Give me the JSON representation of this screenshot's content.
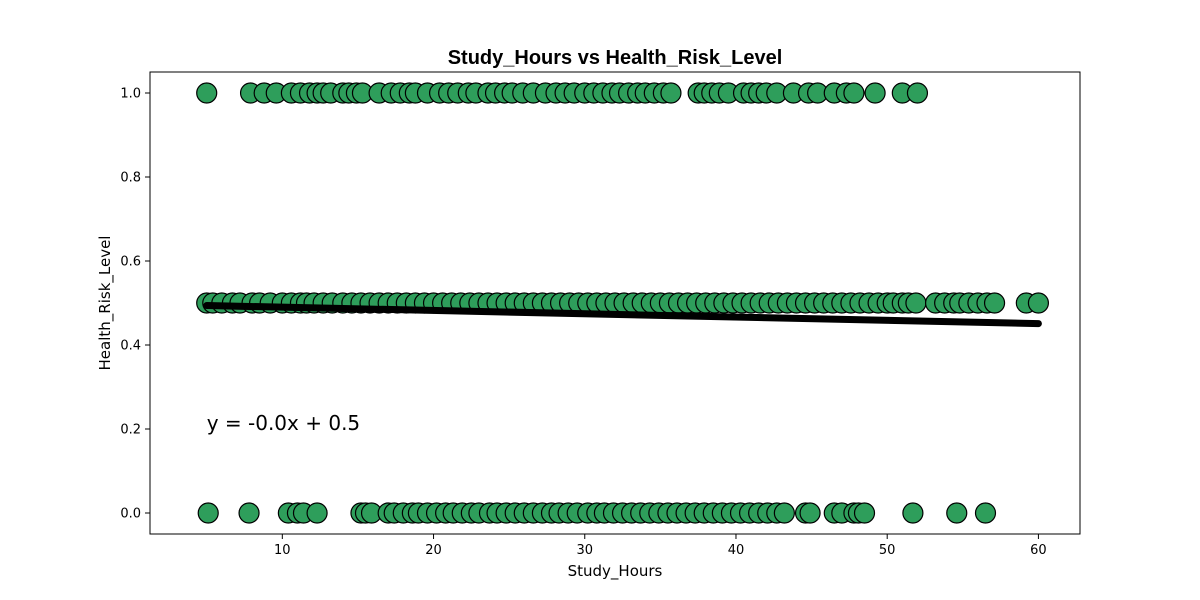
{
  "chart_data": {
    "type": "scatter",
    "title": "Study_Hours vs Health_Risk_Level",
    "xlabel": "Study_Hours",
    "ylabel": "Health_Risk_Level",
    "xlim": [
      1.25,
      62.75
    ],
    "ylim": [
      -0.05,
      1.05
    ],
    "x_ticks": [
      10,
      20,
      30,
      40,
      50,
      60
    ],
    "y_ticks": [
      0.0,
      0.2,
      0.4,
      0.6,
      0.8,
      1.0
    ],
    "x_tick_labels": [
      "10",
      "20",
      "30",
      "40",
      "50",
      "60"
    ],
    "y_tick_labels": [
      "0.0",
      "0.2",
      "0.4",
      "0.6",
      "0.8",
      "1.0"
    ],
    "grid": false,
    "point_color": "#2e9e5b",
    "point_edge_color": "#000000",
    "line_color": "#000000",
    "series": [
      {
        "y_level": 1.0,
        "x": [
          5.0,
          7.9,
          8.8,
          9.6,
          10.6,
          11.2,
          11.8,
          12.3,
          12.7,
          13.2,
          14.0,
          14.4,
          14.9,
          15.3,
          16.4,
          17.2,
          17.8,
          18.4,
          18.8,
          19.6,
          20.4,
          21.0,
          21.6,
          22.3,
          22.8,
          23.6,
          24.1,
          24.7,
          25.2,
          25.9,
          26.6,
          27.4,
          28.1,
          28.7,
          29.3,
          30.0,
          30.6,
          31.2,
          31.8,
          32.3,
          32.9,
          33.5,
          34.0,
          34.6,
          35.2,
          35.7,
          37.5,
          37.9,
          38.4,
          38.9,
          39.5,
          40.5,
          41.0,
          41.5,
          42.0,
          42.7,
          43.8,
          44.8,
          45.4,
          46.5,
          47.3,
          47.8,
          49.2,
          51.0,
          52.0
        ]
      },
      {
        "y_level": 0.5,
        "x": [
          5.0,
          5.4,
          6.0,
          6.7,
          7.2,
          8.0,
          8.5,
          9.2,
          10.0,
          10.6,
          11.2,
          11.6,
          12.1,
          12.7,
          13.3,
          14.0,
          14.6,
          15.2,
          15.8,
          16.4,
          17.0,
          17.6,
          18.2,
          18.8,
          19.4,
          20.0,
          20.6,
          21.2,
          21.8,
          22.4,
          23.0,
          23.6,
          24.2,
          24.8,
          25.4,
          26.0,
          26.6,
          27.2,
          27.8,
          28.4,
          29.0,
          29.6,
          30.2,
          30.8,
          31.4,
          32.0,
          32.6,
          33.2,
          33.8,
          34.4,
          35.0,
          35.6,
          36.2,
          36.8,
          37.4,
          38.0,
          38.6,
          39.2,
          39.8,
          40.4,
          41.0,
          41.6,
          42.2,
          42.8,
          43.4,
          44.0,
          44.6,
          45.2,
          45.8,
          46.4,
          47.0,
          47.6,
          48.2,
          48.8,
          49.4,
          50.0,
          50.4,
          51.0,
          51.4,
          51.9,
          53.2,
          53.8,
          54.4,
          54.8,
          55.4,
          56.0,
          56.6,
          57.1,
          59.2,
          60.0
        ]
      },
      {
        "y_level": 0.0,
        "x": [
          5.1,
          7.8,
          10.4,
          11.0,
          11.4,
          12.3,
          15.2,
          15.5,
          15.9,
          17.0,
          17.4,
          18.0,
          18.6,
          19.0,
          19.6,
          20.2,
          20.8,
          21.3,
          21.9,
          22.5,
          23.0,
          23.7,
          24.2,
          24.8,
          25.4,
          26.0,
          26.6,
          27.2,
          27.8,
          28.3,
          28.9,
          29.5,
          30.2,
          30.8,
          31.3,
          31.9,
          32.5,
          33.1,
          33.7,
          34.3,
          34.9,
          35.5,
          36.1,
          36.7,
          37.3,
          37.9,
          38.5,
          39.1,
          39.7,
          40.3,
          40.9,
          41.5,
          42.1,
          42.7,
          43.2,
          44.6,
          44.9,
          46.5,
          47.0,
          47.8,
          48.1,
          48.5,
          51.7,
          54.6,
          56.5
        ]
      }
    ],
    "regression": {
      "x_start": 5.0,
      "x_end": 60.0,
      "y_start": 0.494,
      "y_end": 0.451
    },
    "annotation": {
      "text": "y = -0.0x + 0.5",
      "x": 5.0,
      "y": 0.2
    }
  }
}
